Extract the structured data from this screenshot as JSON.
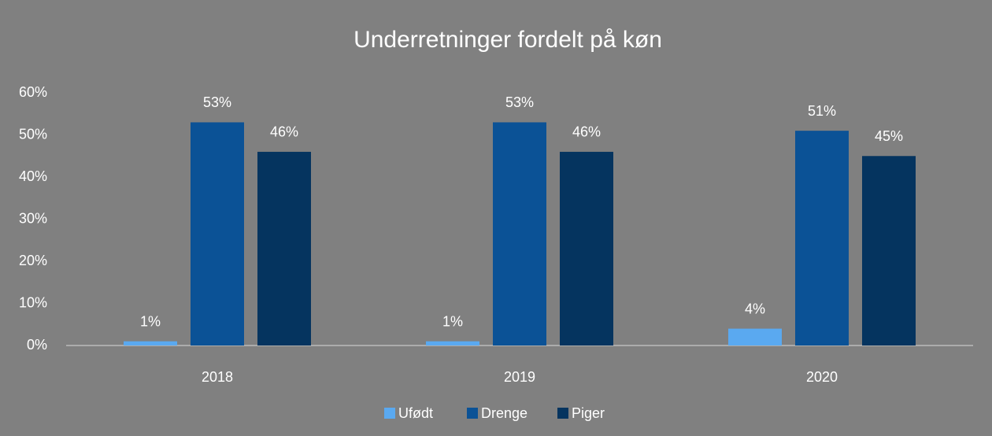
{
  "chart_data": {
    "type": "bar",
    "title": "Underretninger fordelt på køn",
    "categories": [
      "2018",
      "2019",
      "2020"
    ],
    "series": [
      {
        "name": "Ufødt",
        "color": "#5aa9f0",
        "values": [
          1,
          1,
          4
        ],
        "value_labels": [
          "1%",
          "1%",
          "4%"
        ]
      },
      {
        "name": "Drenge",
        "color": "#0b5296",
        "values": [
          53,
          53,
          51
        ],
        "value_labels": [
          "53%",
          "53%",
          "51%"
        ]
      },
      {
        "name": "Piger",
        "color": "#05345f",
        "values": [
          46,
          46,
          45
        ],
        "value_labels": [
          "46%",
          "46%",
          "45%"
        ]
      }
    ],
    "ylim": [
      0,
      60
    ],
    "yticks": [
      {
        "value": 0,
        "label": "0%"
      },
      {
        "value": 10,
        "label": "10%"
      },
      {
        "value": 20,
        "label": "20%"
      },
      {
        "value": 30,
        "label": "30%"
      },
      {
        "value": 40,
        "label": "40%"
      },
      {
        "value": 50,
        "label": "50%"
      },
      {
        "value": 60,
        "label": "60%"
      }
    ],
    "grid": false,
    "legend": "bottom"
  }
}
